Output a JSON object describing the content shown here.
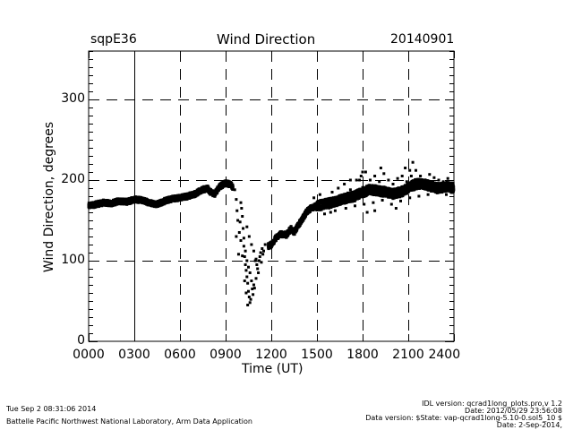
{
  "header": {
    "site": "sqpE36",
    "title": "Wind Direction",
    "date": "20140901"
  },
  "footer": {
    "left_line1": "Tue Sep  2 08:31:06 2014",
    "left_line2": "Battelle Pacific Northwest National Laboratory, Arm Data Application",
    "right_line1": "IDL version: qcrad1long_plots.pro,v 1.2",
    "right_line2": "Date: 2012/05/29 23:56:08",
    "right_line3": "Data version: $State: vap-qcrad1long-5.10-0.sol5_10 $",
    "right_line4": "Date: 2-Sep-2014,"
  },
  "chart_data": {
    "type": "scatter",
    "title": "Wind Direction",
    "xlabel": "Time (UT)",
    "ylabel": "Wind Direction, degrees",
    "xlim": [
      0,
      24
    ],
    "ylim": [
      0,
      360
    ],
    "x_ticks": [
      0,
      3,
      6,
      9,
      12,
      15,
      18,
      21,
      24
    ],
    "x_tick_labels": [
      "0000",
      "0300",
      "0600",
      "0900",
      "1200",
      "1500",
      "1800",
      "2100",
      "2400"
    ],
    "y_ticks": [
      0,
      100,
      200,
      300
    ],
    "y_tick_labels": [
      "0",
      "100",
      "200",
      "300"
    ],
    "y_minor_step": 10,
    "grid": "dashed",
    "marker_color": "#000000",
    "trace": [
      [
        0.0,
        168
      ],
      [
        0.5,
        170
      ],
      [
        1.0,
        172
      ],
      [
        1.5,
        171
      ],
      [
        2.0,
        174
      ],
      [
        2.5,
        173
      ],
      [
        3.0,
        176
      ],
      [
        3.5,
        175
      ],
      [
        4.0,
        172
      ],
      [
        4.5,
        170
      ],
      [
        5.0,
        174
      ],
      [
        5.5,
        177
      ],
      [
        6.0,
        178
      ],
      [
        6.5,
        180
      ],
      [
        7.0,
        183
      ],
      [
        7.5,
        188
      ],
      [
        7.8,
        190
      ],
      [
        8.0,
        185
      ],
      [
        8.3,
        183
      ],
      [
        8.6,
        192
      ],
      [
        9.0,
        196
      ],
      [
        9.3,
        195
      ],
      [
        9.5,
        190
      ],
      [
        11.8,
        118
      ],
      [
        12.0,
        120
      ],
      [
        12.3,
        128
      ],
      [
        12.6,
        133
      ],
      [
        13.0,
        132
      ],
      [
        13.3,
        140
      ],
      [
        13.5,
        135
      ],
      [
        13.8,
        145
      ],
      [
        14.0,
        150
      ],
      [
        14.3,
        160
      ],
      [
        14.6,
        165
      ],
      [
        15.0,
        168
      ],
      [
        15.5,
        170
      ],
      [
        16.0,
        172
      ],
      [
        16.5,
        175
      ],
      [
        17.0,
        178
      ],
      [
        17.5,
        180
      ],
      [
        18.0,
        185
      ],
      [
        18.5,
        188
      ],
      [
        19.0,
        187
      ],
      [
        19.5,
        185
      ],
      [
        20.0,
        183
      ],
      [
        20.5,
        185
      ],
      [
        21.0,
        190
      ],
      [
        21.5,
        195
      ],
      [
        22.0,
        195
      ],
      [
        22.5,
        192
      ],
      [
        23.0,
        190
      ],
      [
        23.5,
        192
      ],
      [
        24.0,
        190
      ]
    ],
    "scatter": [
      [
        9.6,
        188
      ],
      [
        9.7,
        176
      ],
      [
        9.75,
        162
      ],
      [
        9.8,
        150
      ],
      [
        9.9,
        135
      ],
      [
        9.7,
        130
      ],
      [
        9.85,
        108
      ],
      [
        10.0,
        172
      ],
      [
        10.05,
        165
      ],
      [
        10.1,
        155
      ],
      [
        10.15,
        140
      ],
      [
        10.2,
        128
      ],
      [
        10.0,
        125
      ],
      [
        10.25,
        105
      ],
      [
        10.3,
        95
      ],
      [
        10.35,
        88
      ],
      [
        10.4,
        80
      ],
      [
        10.45,
        72
      ],
      [
        10.5,
        62
      ],
      [
        10.55,
        55
      ],
      [
        10.6,
        48
      ],
      [
        10.65,
        52
      ],
      [
        10.2,
        118
      ],
      [
        10.3,
        112
      ],
      [
        10.4,
        100
      ],
      [
        10.5,
        92
      ],
      [
        10.6,
        85
      ],
      [
        10.7,
        75
      ],
      [
        10.75,
        65
      ],
      [
        10.8,
        58
      ],
      [
        10.9,
        66
      ],
      [
        11.0,
        78
      ],
      [
        11.05,
        95
      ],
      [
        11.1,
        90
      ],
      [
        11.15,
        85
      ],
      [
        11.2,
        100
      ],
      [
        11.25,
        105
      ],
      [
        11.3,
        110
      ],
      [
        11.4,
        115
      ],
      [
        11.5,
        112
      ],
      [
        11.6,
        120
      ],
      [
        10.85,
        70
      ],
      [
        10.95,
        100
      ],
      [
        11.0,
        102
      ],
      [
        10.4,
        142
      ],
      [
        10.55,
        130
      ],
      [
        10.7,
        120
      ],
      [
        10.85,
        112
      ],
      [
        9.95,
        148
      ],
      [
        10.1,
        106
      ],
      [
        10.25,
        75
      ],
      [
        10.35,
        60
      ],
      [
        10.45,
        45
      ],
      [
        11.35,
        98
      ],
      [
        11.45,
        108
      ],
      [
        14.8,
        178
      ],
      [
        15.2,
        182
      ],
      [
        15.6,
        175
      ],
      [
        16.0,
        185
      ],
      [
        16.4,
        190
      ],
      [
        16.8,
        195
      ],
      [
        17.2,
        188
      ],
      [
        17.6,
        200
      ],
      [
        17.9,
        205
      ],
      [
        18.2,
        210
      ],
      [
        18.5,
        200
      ],
      [
        18.8,
        205
      ],
      [
        19.1,
        198
      ],
      [
        19.4,
        208
      ],
      [
        19.7,
        200
      ],
      [
        20.0,
        195
      ],
      [
        20.3,
        202
      ],
      [
        20.6,
        205
      ],
      [
        20.9,
        198
      ],
      [
        21.2,
        205
      ],
      [
        21.5,
        212
      ],
      [
        21.8,
        205
      ],
      [
        22.1,
        200
      ],
      [
        22.4,
        207
      ],
      [
        22.7,
        203
      ],
      [
        23.0,
        200
      ],
      [
        23.3,
        198
      ],
      [
        23.6,
        202
      ],
      [
        15.5,
        158
      ],
      [
        16.2,
        162
      ],
      [
        16.9,
        165
      ],
      [
        17.5,
        168
      ],
      [
        18.1,
        170
      ],
      [
        18.7,
        172
      ],
      [
        19.3,
        175
      ],
      [
        19.9,
        170
      ],
      [
        20.5,
        174
      ],
      [
        21.1,
        178
      ],
      [
        21.7,
        180
      ],
      [
        22.3,
        182
      ],
      [
        22.9,
        184
      ],
      [
        23.5,
        182
      ],
      [
        19.2,
        215
      ],
      [
        20.8,
        215
      ],
      [
        21.1,
        212
      ],
      [
        18.0,
        210
      ],
      [
        17.8,
        200
      ],
      [
        18.3,
        160
      ],
      [
        18.8,
        162
      ],
      [
        20.2,
        165
      ],
      [
        21.3,
        222
      ],
      [
        15.9,
        160
      ],
      [
        17.2,
        200
      ],
      [
        16.6,
        172
      ]
    ]
  }
}
